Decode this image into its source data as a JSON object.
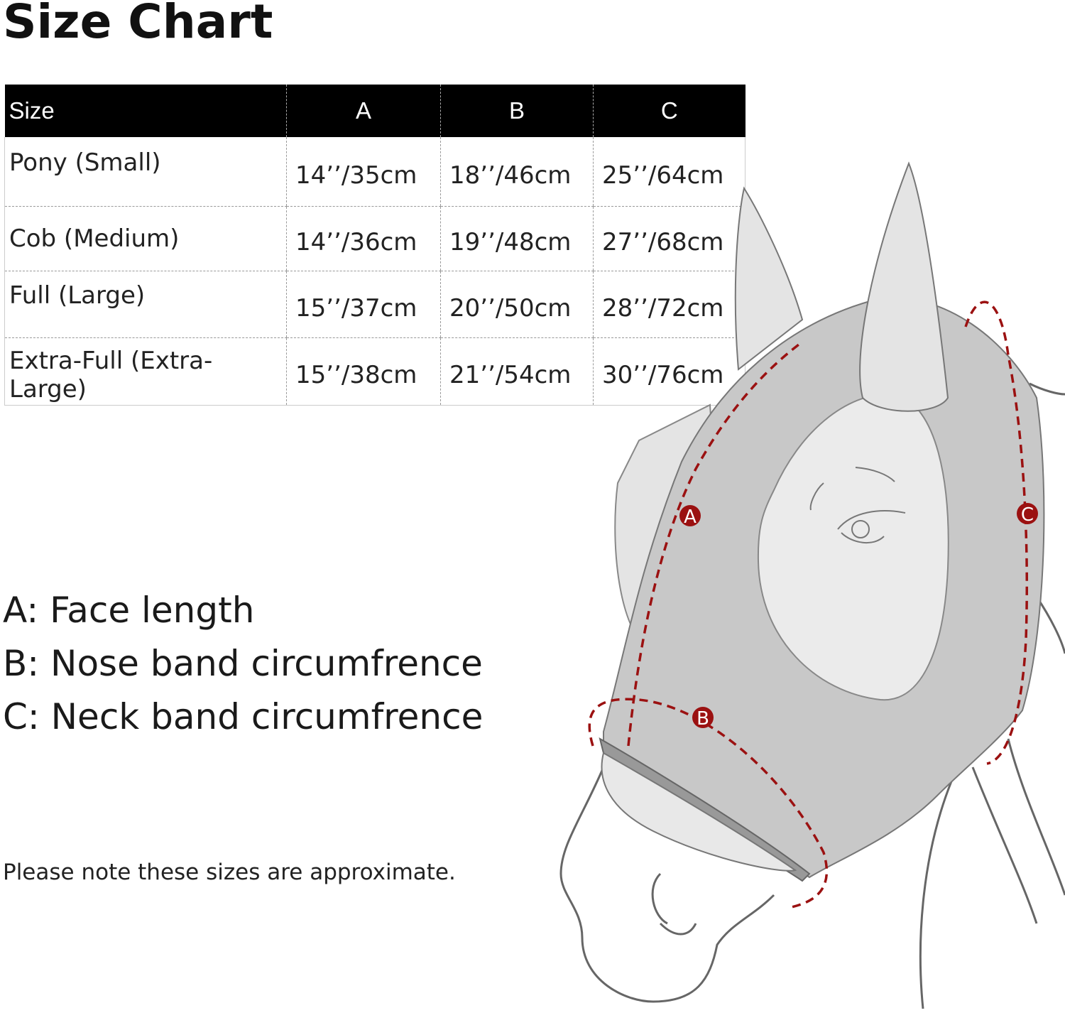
{
  "title": "Size Chart",
  "table": {
    "headers": [
      "Size",
      "A",
      "B",
      "C"
    ],
    "rows": [
      [
        "Pony (Small)",
        "14’’/35cm",
        "18’’/46cm",
        "25’’/64cm"
      ],
      [
        "Cob (Medium)",
        "14’’/36cm",
        "19’’/48cm",
        "27’’/68cm"
      ],
      [
        "Full (Large)",
        "15’’/37cm",
        "20’’/50cm",
        "28’’/72cm"
      ],
      [
        "Extra-Full (Extra-Large)",
        "15’’/38cm",
        "21’’/54cm",
        "30’’/76cm"
      ]
    ]
  },
  "legend": [
    "A: Face length",
    "B: Nose band circumfrence",
    "C: Neck band circumfrence"
  ],
  "note": "Please note these sizes are approximate.",
  "diagram": {
    "markers": [
      "A",
      "B",
      "C"
    ],
    "accent_color": "#9b1111",
    "mask_color": "#c8c8c8"
  }
}
